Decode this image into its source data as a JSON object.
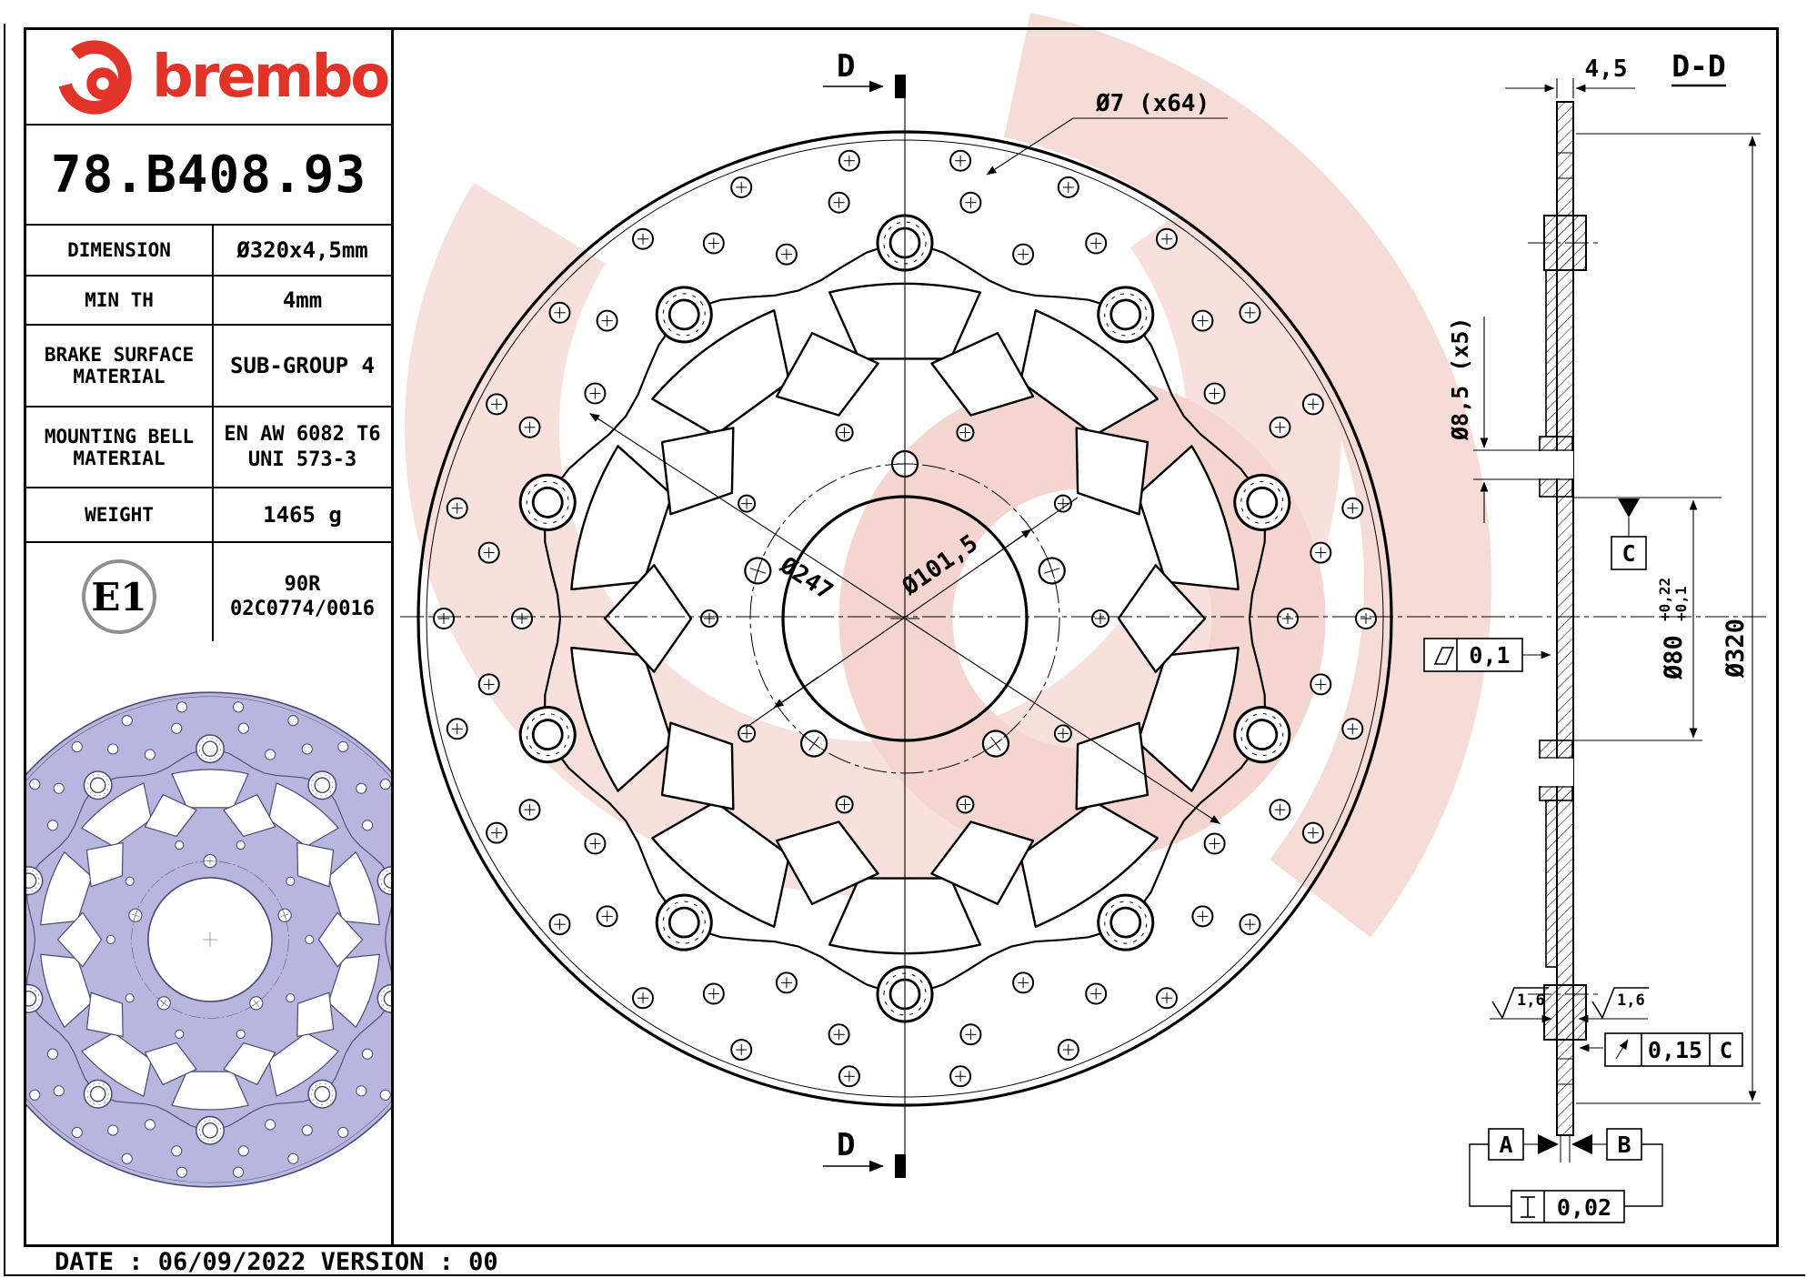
{
  "brand": {
    "wordmark": "brembo",
    "part_number": "78.B408.93"
  },
  "spec_table": {
    "rows": [
      {
        "label": "DIMENSION",
        "value": "Ø320x4,5mm"
      },
      {
        "label": "MIN TH",
        "value": "4mm"
      },
      {
        "label": "BRAKE SURFACE",
        "label2": "MATERIAL",
        "value": "SUB-GROUP 4"
      },
      {
        "label": "MOUNTING BELL",
        "label2": "MATERIAL",
        "value": "EN AW 6082 T6",
        "value2": "UNI 573-3"
      },
      {
        "label": "WEIGHT",
        "value": "1465 g"
      },
      {
        "badge": "E1",
        "value": "90R",
        "value2": "02C0774/0016"
      }
    ]
  },
  "drawing": {
    "section_marker_top": "D",
    "section_marker_bottom": "D",
    "section_title": "D-D",
    "dim_holes": "Ø7 (x64)",
    "dim_bolt_circle": "Ø247",
    "dim_bell_pcd": "Ø101,5",
    "dim_thickness": "4,5",
    "dim_bell_holes": "Ø8,5 (x5)",
    "dim_bore": "Ø80",
    "dim_bore_tol_up": "+0,22",
    "dim_bore_tol_low": "+0,1",
    "dim_outer": "Ø320",
    "tol_flatness": "0,1",
    "roughness_left": "1,6",
    "roughness_right": "1,6",
    "tol_runout": "0,15",
    "tol_runout_datum": "C",
    "datum_c": "C",
    "datum_a": "A",
    "datum_b": "B",
    "tol_dtv": "0,02"
  },
  "footer": {
    "text": "DATE : 06/09/2022 VERSION : 00"
  }
}
